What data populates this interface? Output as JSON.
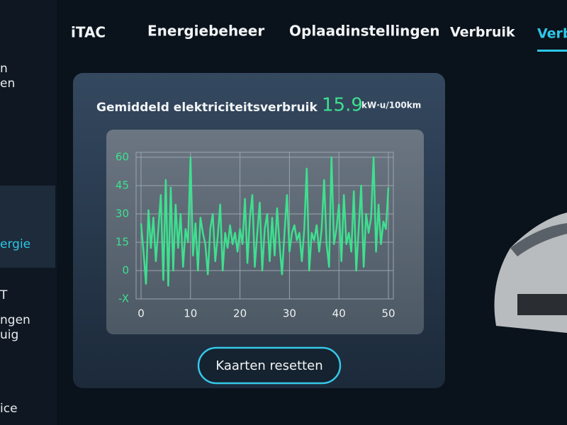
{
  "tabs": [
    "iTAC",
    "Energiebeheer",
    "Oplaadinstellingen",
    "Verbruik",
    "Verbr"
  ],
  "sidebar": [
    "n",
    "en",
    "ergie",
    "T",
    "ngen",
    "uig",
    "ice"
  ],
  "panel": {
    "title": "Gemiddeld elektriciteitsverbruik",
    "value": 15.9,
    "unit": "kW·u/100km",
    "chart": {
      "type": "line",
      "color": "#3ee08f",
      "x": [
        0,
        0.5,
        1,
        1.5,
        2,
        2.5,
        3,
        3.5,
        4,
        4.5,
        5,
        5.5,
        6,
        6.5,
        7,
        7.5,
        8,
        8.5,
        9,
        9.5,
        10,
        10.5,
        11,
        11.5,
        12,
        12.5,
        13,
        13.5,
        14,
        14.5,
        15,
        15.5,
        16,
        16.5,
        17,
        17.5,
        18,
        18.5,
        19,
        19.5,
        20,
        20.5,
        21,
        21.5,
        22,
        22.5,
        23,
        23.5,
        24,
        24.5,
        25,
        25.5,
        26,
        26.5,
        27,
        27.5,
        28,
        28.5,
        29,
        29.5,
        30,
        30.5,
        31,
        31.5,
        32,
        32.5,
        33,
        33.5,
        34,
        34.5,
        35,
        35.5,
        36,
        36.5,
        37,
        37.5,
        38,
        38.5,
        39,
        39.5,
        40,
        40.5,
        41,
        41.5,
        42,
        42.5,
        43,
        43.5,
        44,
        44.5,
        45,
        45.5,
        46,
        46.5,
        47,
        47.5,
        48,
        48.5,
        49,
        49.5,
        50
      ],
      "values": [
        25,
        10,
        -7,
        32,
        12,
        28,
        5,
        22,
        40,
        -5,
        48,
        -8,
        44,
        0,
        35,
        12,
        30,
        2,
        22,
        15,
        60,
        8,
        25,
        0,
        28,
        20,
        14,
        -2,
        22,
        30,
        5,
        18,
        35,
        0,
        20,
        12,
        24,
        14,
        20,
        10,
        22,
        14,
        38,
        4,
        28,
        40,
        2,
        20,
        36,
        0,
        22,
        30,
        5,
        28,
        8,
        33,
        14,
        -2,
        20,
        40,
        10,
        20,
        24,
        16,
        20,
        5,
        22,
        54,
        0,
        20,
        16,
        24,
        10,
        22,
        48,
        14,
        2,
        60,
        14,
        22,
        35,
        5,
        40,
        14,
        20,
        10,
        42,
        0,
        22,
        45,
        2,
        30,
        20,
        28,
        60,
        10,
        35,
        14,
        26,
        22,
        44
      ],
      "xlim": [
        -1,
        51
      ],
      "ylim": [
        -15,
        60
      ],
      "xticks": [
        0,
        10,
        20,
        30,
        40,
        50
      ],
      "yticks": [
        {
          "value": -15,
          "label": "-X"
        },
        0,
        15,
        30,
        45,
        60
      ],
      "grid": true
    }
  },
  "button": "Kaarten resetten"
}
